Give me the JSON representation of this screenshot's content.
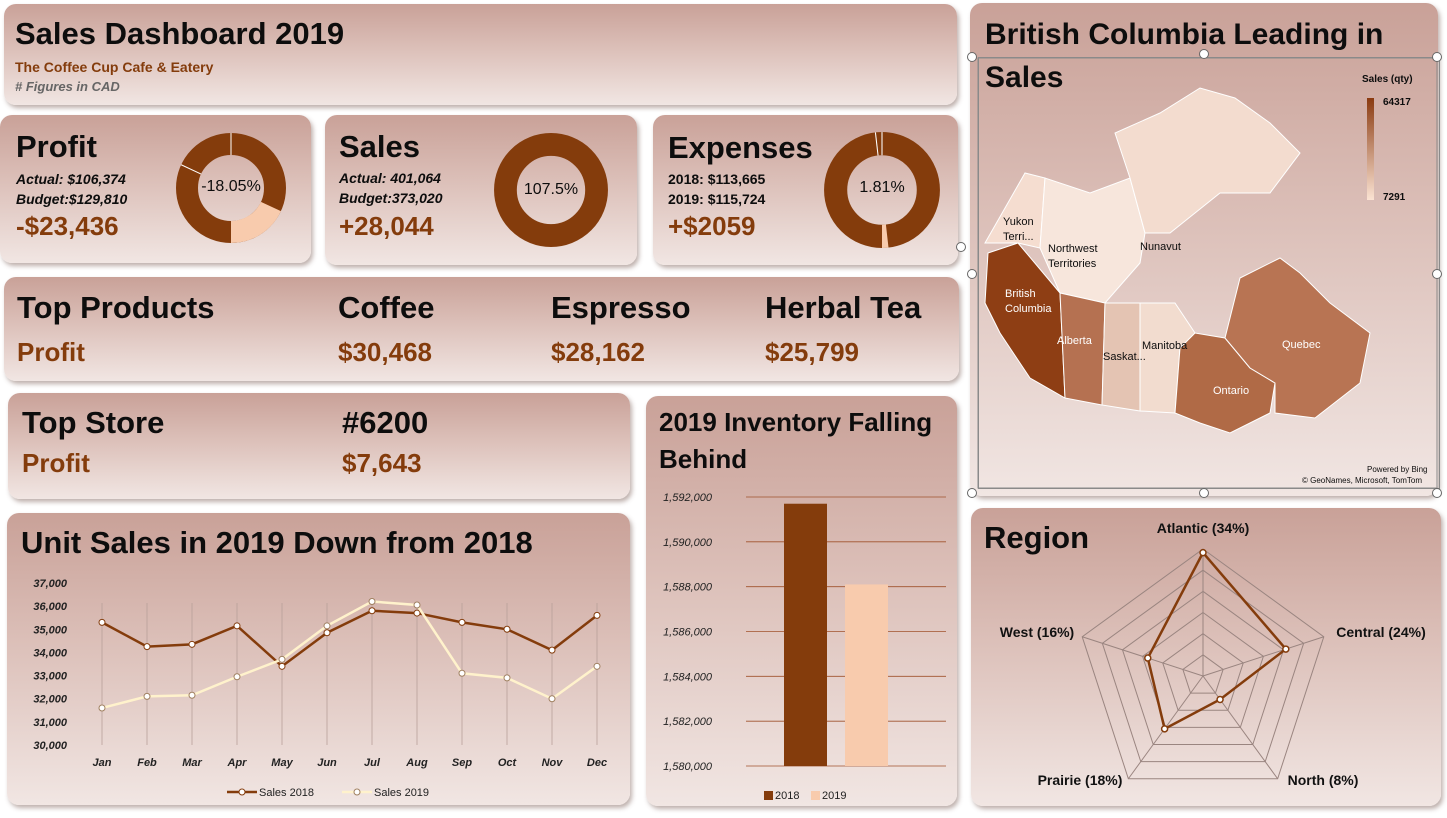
{
  "header": {
    "title": "Sales Dashboard 2019",
    "subtitle": "The Coffee Cup Cafe & Eatery",
    "note": "# Figures in CAD"
  },
  "kpis": {
    "profit": {
      "label": "Profit",
      "line1": "Actual: $106,374",
      "line2": "Budget:$129,810",
      "value": "-$23,436",
      "donut_label": "-18.05%",
      "donut_fraction": 0.1805
    },
    "sales": {
      "label": "Sales",
      "line1": "Actual: 401,064",
      "line2": "Budget:373,020",
      "value": "+28,044",
      "donut_label": "107.5%",
      "donut_fraction": 1.0
    },
    "expenses": {
      "label": "Expenses",
      "line1": "2018: $113,665",
      "line2": "2019: $115,724",
      "value": "+$2059",
      "donut_label": "1.81%",
      "donut_fraction": 0.0181
    }
  },
  "top_products": {
    "title": "Top Products",
    "row_label": "Profit",
    "items": [
      {
        "name": "Coffee",
        "profit": "$30,468"
      },
      {
        "name": "Espresso",
        "profit": "$28,162"
      },
      {
        "name": "Herbal Tea",
        "profit": "$25,799"
      }
    ]
  },
  "top_store": {
    "title": "Top Store",
    "row_label": "Profit",
    "store": "#6200",
    "profit": "$7,643"
  },
  "map": {
    "title": "British Columbia Leading in Sales",
    "legend_title": "Sales (qty)",
    "legend_max": "64317",
    "legend_min": "7291",
    "credit1": "Powered by Bing",
    "credit2": "© GeoNames, Microsoft, TomTom",
    "regions": [
      "Yukon Terri...",
      "Northwest Territories",
      "Nunavut",
      "British Columbia",
      "Alberta",
      "Saskat...",
      "Manitoba",
      "Quebec",
      "Ontario"
    ]
  },
  "colors": {
    "accent": "#843c0c",
    "light": "#f8cbad",
    "dark_line": "#843c0c",
    "light_line": "#fff2cc"
  },
  "chart_data": [
    {
      "type": "line",
      "title": "Unit Sales in 2019 Down from 2018",
      "categories": [
        "Jan",
        "Feb",
        "Mar",
        "Apr",
        "May",
        "Jun",
        "Jul",
        "Aug",
        "Sep",
        "Oct",
        "Nov",
        "Dec"
      ],
      "series": [
        {
          "name": "Sales 2018",
          "values": [
            35300,
            34250,
            34350,
            35150,
            33400,
            34850,
            35800,
            35700,
            35300,
            35000,
            34100,
            35600
          ]
        },
        {
          "name": "Sales 2019",
          "values": [
            31600,
            32100,
            32150,
            32950,
            33700,
            35150,
            36200,
            36050,
            33100,
            32900,
            32000,
            33400
          ]
        }
      ],
      "yticks": [
        "30,000",
        "31,000",
        "32,000",
        "33,000",
        "34,000",
        "35,000",
        "36,000",
        "37,000"
      ],
      "ylim": [
        30000,
        37000
      ],
      "legend": "bottom"
    },
    {
      "type": "bar",
      "title": "2019 Inventory Falling Behind",
      "categories": [
        ""
      ],
      "series": [
        {
          "name": "2018",
          "values": [
            1591700
          ]
        },
        {
          "name": "2019",
          "values": [
            1588100
          ]
        }
      ],
      "yticks": [
        "1,580,000",
        "1,582,000",
        "1,584,000",
        "1,586,000",
        "1,588,000",
        "1,590,000",
        "1,592,000"
      ],
      "ylim": [
        1580000,
        1592000
      ],
      "legend": "bottom"
    },
    {
      "type": "radar",
      "title": "Region",
      "categories": [
        "Atlantic (34%)",
        "Central (24%)",
        "North (8%)",
        "Prairie (18%)",
        "West (16%)"
      ],
      "values": [
        34,
        24,
        8,
        18,
        16
      ],
      "rmax": 35
    }
  ]
}
